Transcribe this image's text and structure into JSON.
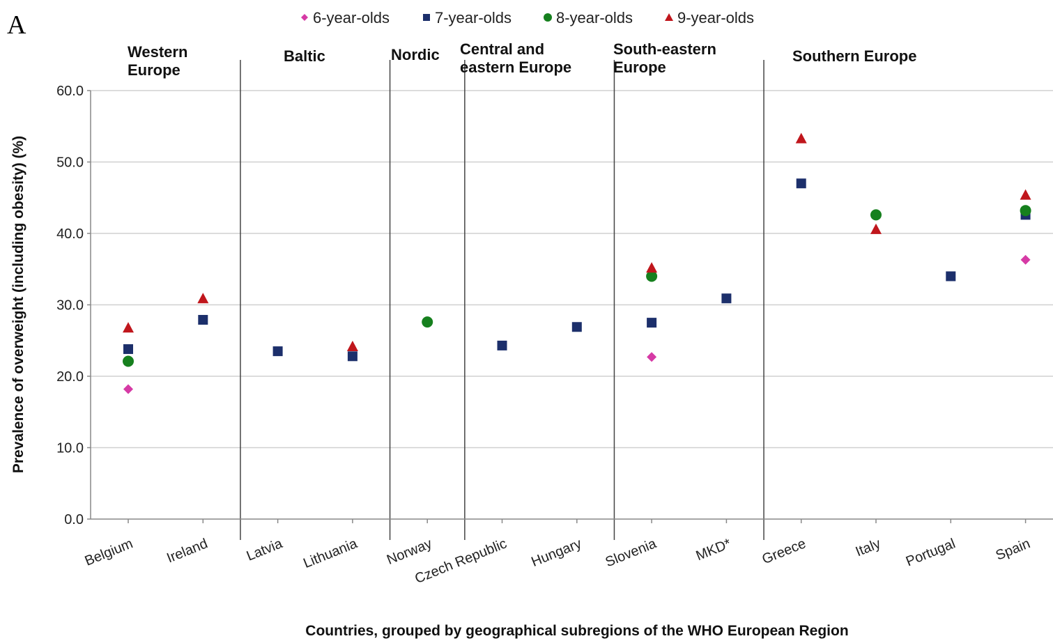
{
  "panel_letter": "A",
  "colors": {
    "6-year-olds": "#d63aa5",
    "7-year-olds": "#1c2f6b",
    "8-year-olds": "#16801e",
    "9-year-olds": "#c0161c",
    "gridline": "#d0d0d0",
    "separator": "#444444"
  },
  "chart_data": {
    "type": "scatter",
    "title": "",
    "xlabel": "Countries, grouped by geographical subregions of the WHO European Region",
    "ylabel": "Prevalence of overweight (including obesity) (%)",
    "ylim": [
      0,
      60
    ],
    "yticks": [
      "0.0",
      "10.0",
      "20.0",
      "30.0",
      "40.0",
      "50.0",
      "60.0"
    ],
    "grid": "horizontal",
    "legend_position": "top",
    "categories": [
      "Belgium",
      "Ireland",
      "Latvia",
      "Lithuania",
      "Norway",
      "Czech Republic",
      "Hungary",
      "Slovenia",
      "MKD*",
      "Greece",
      "Italy",
      "Portugal",
      "Spain"
    ],
    "regions": [
      {
        "label_lines": [
          "Western",
          "Europe"
        ],
        "countries": [
          "Belgium",
          "Ireland"
        ]
      },
      {
        "label_lines": [
          "Baltic"
        ],
        "countries": [
          "Latvia",
          "Lithuania"
        ]
      },
      {
        "label_lines": [
          "Nordic"
        ],
        "countries": [
          "Norway"
        ]
      },
      {
        "label_lines": [
          "Central and",
          "eastern Europe"
        ],
        "countries": [
          "Czech Republic",
          "Hungary"
        ]
      },
      {
        "label_lines": [
          "South-eastern",
          "Europe"
        ],
        "countries": [
          "Slovenia",
          "MKD*"
        ]
      },
      {
        "label_lines": [
          "Southern Europe"
        ],
        "countries": [
          "Greece",
          "Italy",
          "Portugal",
          "Spain"
        ]
      }
    ],
    "series": [
      {
        "name": "6-year-olds",
        "marker": "diamond",
        "values": [
          18.2,
          null,
          null,
          null,
          null,
          null,
          null,
          22.7,
          null,
          null,
          null,
          null,
          36.3
        ]
      },
      {
        "name": "7-year-olds",
        "marker": "square",
        "values": [
          23.8,
          27.9,
          23.5,
          22.8,
          null,
          24.3,
          26.9,
          27.5,
          30.9,
          47.0,
          null,
          34.0,
          42.6
        ]
      },
      {
        "name": "8-year-olds",
        "marker": "circle",
        "values": [
          22.1,
          null,
          null,
          null,
          27.6,
          null,
          null,
          34.0,
          null,
          null,
          42.6,
          null,
          43.2
        ]
      },
      {
        "name": "9-year-olds",
        "marker": "triangle",
        "values": [
          26.8,
          30.9,
          null,
          24.2,
          null,
          null,
          null,
          35.2,
          null,
          53.3,
          40.6,
          null,
          45.4
        ]
      }
    ]
  }
}
